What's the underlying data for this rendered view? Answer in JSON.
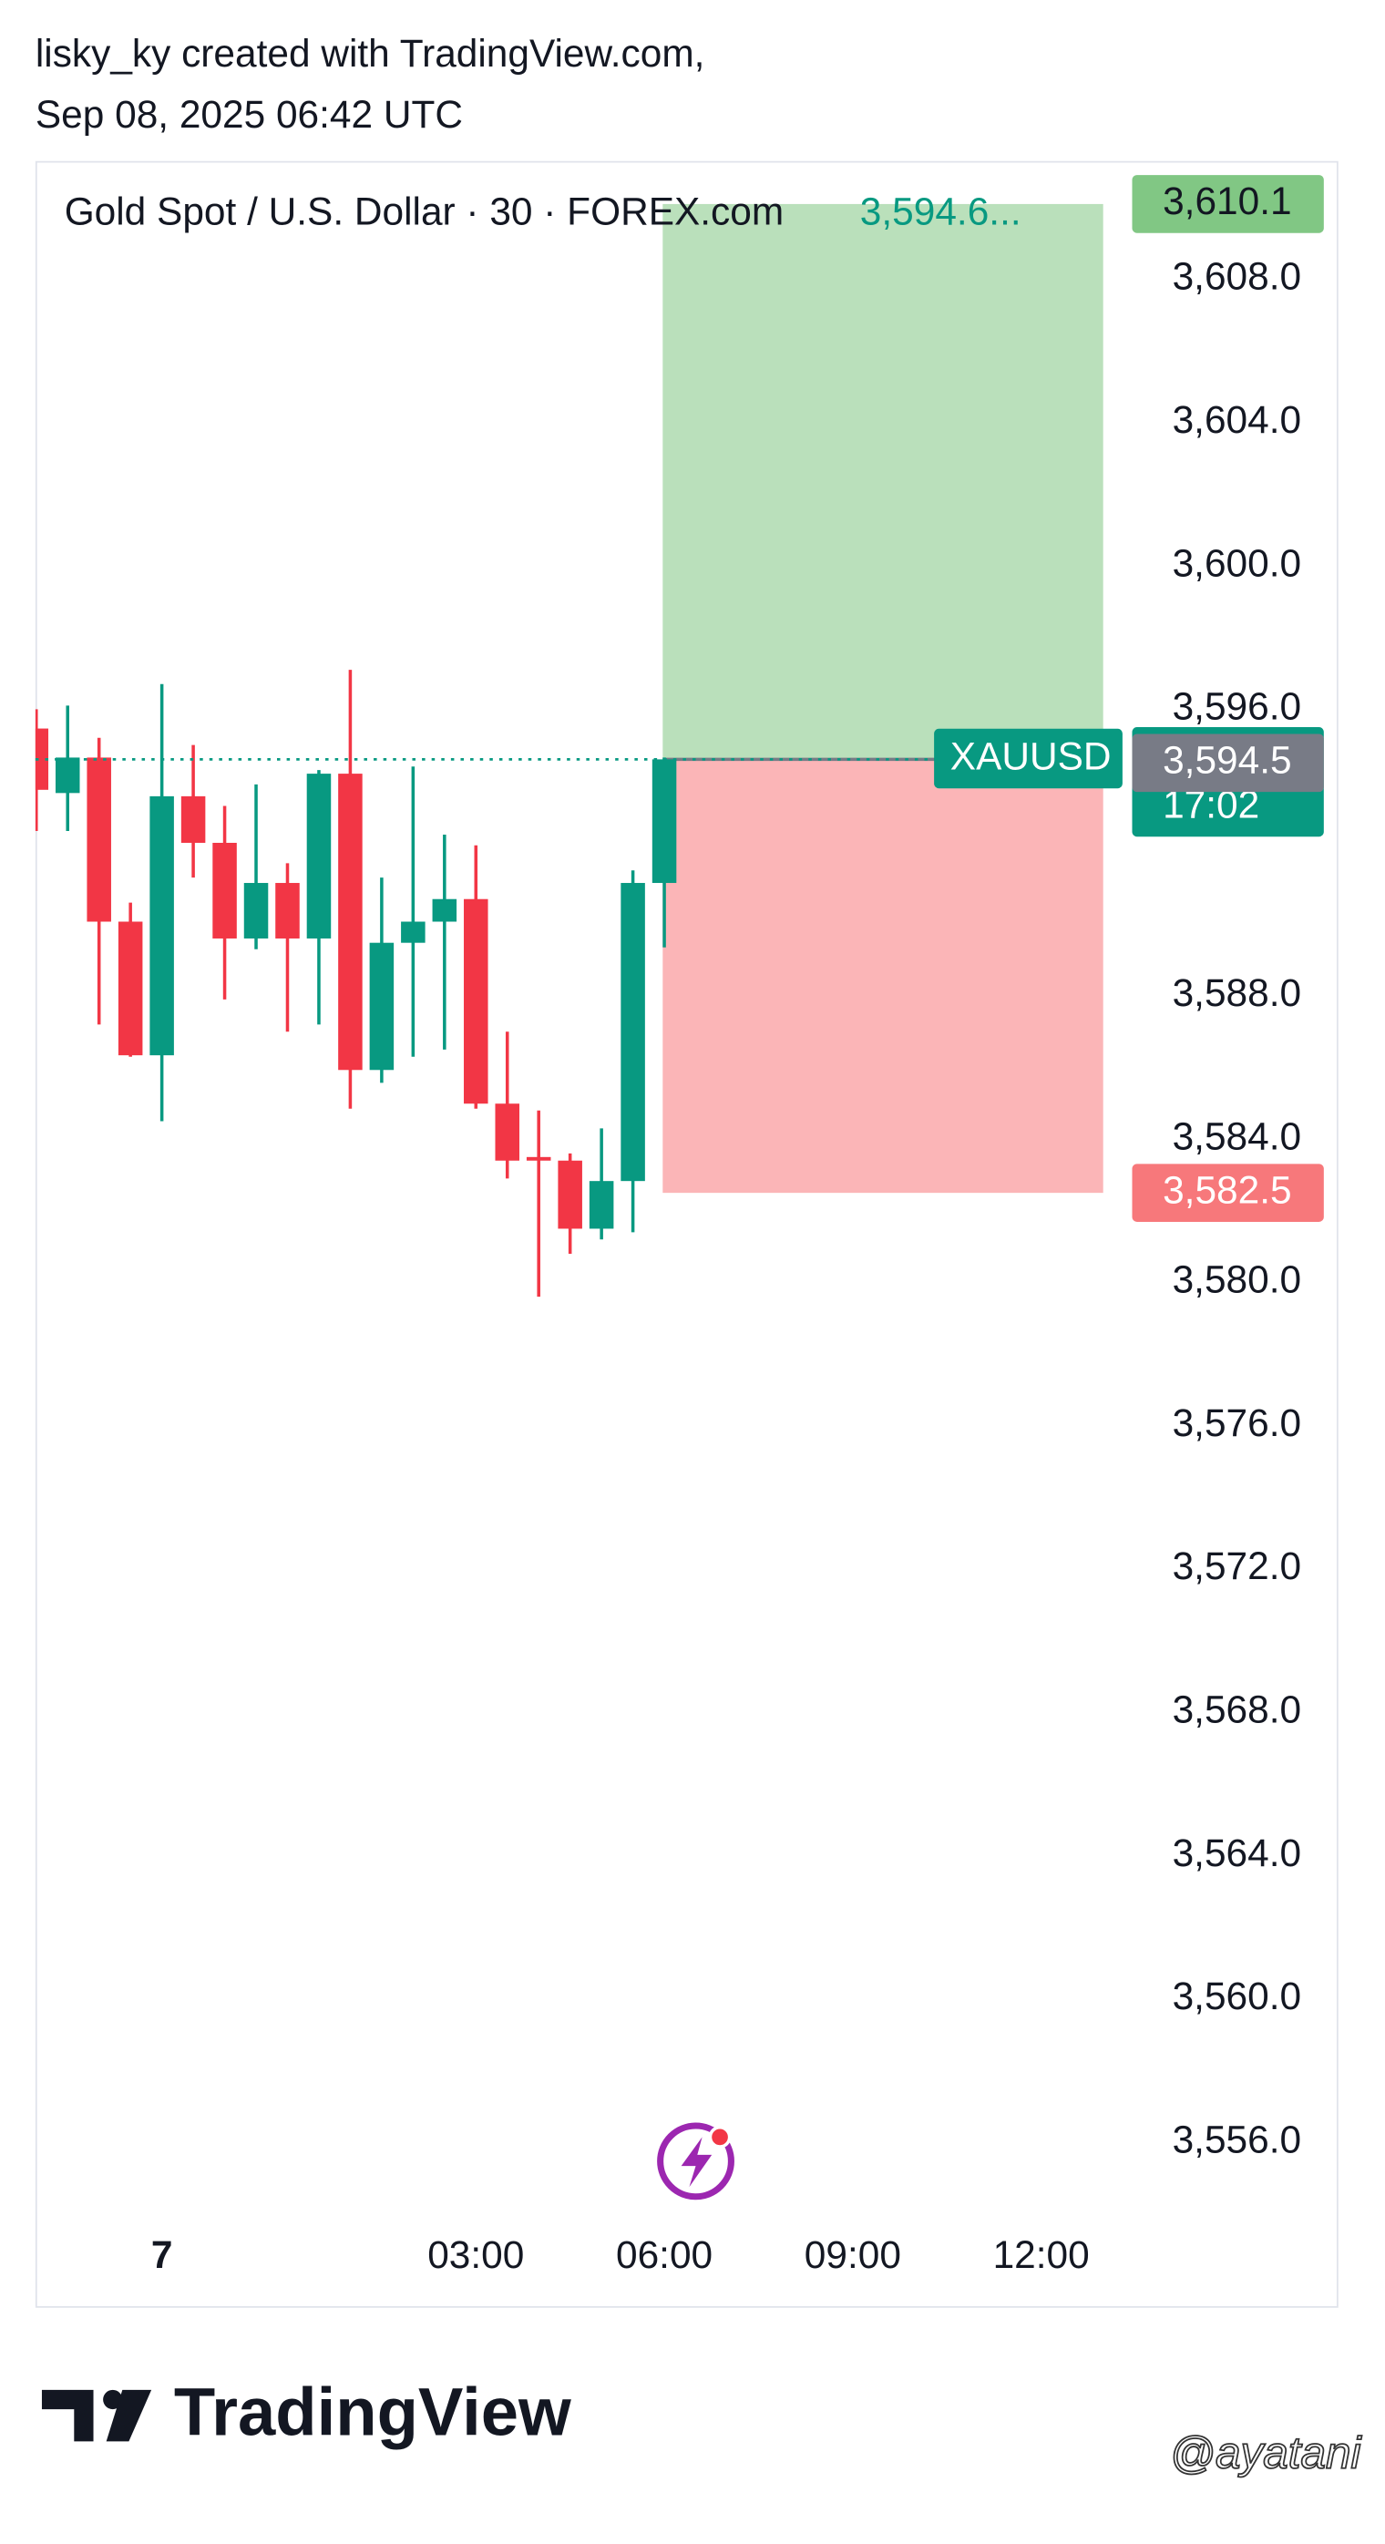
{
  "header": {
    "line1": "lisky_ky created with TradingView.com,",
    "line2": "Sep 08, 2025 06:42 UTC"
  },
  "chart_data": {
    "type": "candlestick",
    "title": "Gold Spot / U.S. Dollar · 30 · FOREX.com",
    "legend_value": "3,594.6...",
    "up_color": "#089981",
    "down_color": "#f23645",
    "categories": [
      null,
      null,
      null,
      null,
      "7",
      null,
      null,
      null,
      null,
      null,
      null,
      null,
      null,
      null,
      "03:00",
      null,
      null,
      null,
      null,
      null,
      "06:00",
      null,
      null,
      null,
      null,
      null,
      "09:00",
      null,
      null,
      null,
      null,
      null,
      "12:00",
      null,
      null
    ],
    "open": [
      3595.46,
      3593.66,
      3594.65,
      3590.07,
      3586.34,
      3593.57,
      3592.27,
      3589.6,
      3591.15,
      3589.6,
      3594.2,
      3585.93,
      3589.48,
      3590.07,
      3590.7,
      3584.99,
      3583.5,
      3583.4,
      3581.5,
      3582.83,
      3591.15,
      null,
      null,
      null,
      null,
      null,
      null,
      null,
      null,
      null,
      null,
      null,
      null,
      null,
      null
    ],
    "high": [
      3596.0,
      3596.1,
      3595.2,
      3590.6,
      3596.7,
      3595.0,
      3593.3,
      3593.9,
      3591.7,
      3594.3,
      3597.1,
      3591.3,
      3594.4,
      3592.5,
      3592.2,
      3587.0,
      3584.8,
      3583.6,
      3584.3,
      3591.5,
      3594.65,
      null,
      null,
      null,
      null,
      null,
      null,
      null,
      null,
      null,
      null,
      null,
      null,
      null,
      null
    ],
    "low": [
      3592.6,
      3592.6,
      3587.2,
      3586.3,
      3584.5,
      3591.3,
      3587.9,
      3589.3,
      3587.0,
      3587.2,
      3584.85,
      3585.57,
      3586.3,
      3586.5,
      3584.85,
      3582.9,
      3579.6,
      3580.8,
      3581.2,
      3581.4,
      3589.35,
      null,
      null,
      null,
      null,
      null,
      null,
      null,
      null,
      null,
      null,
      null,
      null,
      null,
      null
    ],
    "close": [
      3593.75,
      3594.65,
      3590.07,
      3586.34,
      3593.57,
      3592.27,
      3589.6,
      3591.15,
      3589.6,
      3594.2,
      3585.93,
      3589.48,
      3590.07,
      3590.7,
      3584.99,
      3583.4,
      3583.4,
      3581.5,
      3582.83,
      3591.15,
      3594.6,
      null,
      null,
      null,
      null,
      null,
      null,
      null,
      null,
      null,
      null,
      null,
      null,
      null,
      null
    ],
    "ylim": [
      3553.75,
      3611.3
    ],
    "yticks": [
      {
        "value": 3608,
        "label": "3,608.0"
      },
      {
        "value": 3604,
        "label": "3,604.0"
      },
      {
        "value": 3600,
        "label": "3,600.0"
      },
      {
        "value": 3596,
        "label": "3,596.0"
      },
      {
        "value": 3588,
        "label": "3,588.0"
      },
      {
        "value": 3584,
        "label": "3,584.0"
      },
      {
        "value": 3580,
        "label": "3,580.0"
      },
      {
        "value": 3576,
        "label": "3,576.0"
      },
      {
        "value": 3572,
        "label": "3,572.0"
      },
      {
        "value": 3568,
        "label": "3,568.0"
      },
      {
        "value": 3564,
        "label": "3,564.0"
      },
      {
        "value": 3560,
        "label": "3,560.0"
      },
      {
        "value": 3556,
        "label": "3,556.0"
      }
    ],
    "symbol_label": "XAUUSD",
    "price_labels": [
      {
        "value": 3610.1,
        "label": "3,610.1",
        "color": "#81c784"
      },
      {
        "value": 3594.6,
        "label": "3,594.6",
        "sublabel": "17:02",
        "color": "#089981"
      },
      {
        "value": 3594.5,
        "label": "3,594.5",
        "color": "#787b86"
      },
      {
        "value": 3582.5,
        "label": "3,582.5",
        "color": "#f7787b"
      }
    ]
  },
  "footer": {
    "brand": "TradingView",
    "watermark": "@ayatani"
  }
}
